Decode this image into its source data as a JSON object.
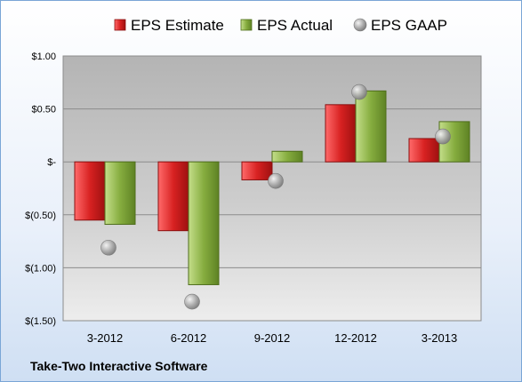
{
  "company_label": "Take-Two Interactive Software",
  "chart_data": {
    "type": "bar",
    "title": "",
    "xlabel": "",
    "ylabel": "",
    "categories": [
      "3-2012",
      "6-2012",
      "9-2012",
      "12-2012",
      "3-2013"
    ],
    "series": [
      {
        "name": "EPS Estimate",
        "kind": "bar",
        "color": "#cc1f1f",
        "values": [
          -0.55,
          -0.65,
          -0.17,
          0.54,
          0.22
        ]
      },
      {
        "name": "EPS Actual",
        "kind": "bar",
        "color": "#7fa638",
        "values": [
          -0.59,
          -1.16,
          0.1,
          0.67,
          0.38
        ]
      },
      {
        "name": "EPS GAAP",
        "kind": "marker",
        "color": "#a9a9a9",
        "values": [
          -0.81,
          -1.32,
          -0.18,
          0.66,
          0.24
        ]
      }
    ],
    "ylim": [
      -1.5,
      1.0
    ],
    "yticks": [
      1.0,
      0.5,
      0.0,
      -0.5,
      -1.0,
      -1.5
    ],
    "ytick_labels": [
      "$1.00",
      "$0.50",
      "$-",
      "$(0.50)",
      "$(1.00)",
      "$(1.50)"
    ],
    "grid": true,
    "legend_position": "top"
  }
}
